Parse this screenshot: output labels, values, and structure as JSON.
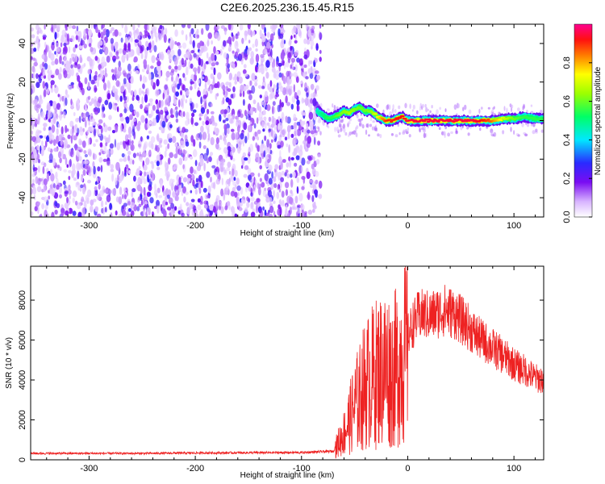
{
  "title": "C2E6.2025.236.15.45.R15",
  "colors": {
    "snr_line": "#ee2222",
    "axis": "#000000",
    "speckle": "#7a0cf2"
  },
  "chart_data": [
    {
      "type": "heatmap",
      "name": "spectrogram",
      "xlabel": "Height of straight line (km)",
      "ylabel": "Frequency (Hz)",
      "xlim": [
        -355,
        128
      ],
      "ylim": [
        -50,
        50
      ],
      "xticks": [
        -300,
        -200,
        -100,
        0,
        100
      ],
      "xtick_labels": [
        "-300",
        "-200",
        "-100",
        "0",
        "100"
      ],
      "yticks": [
        -40,
        -20,
        0,
        20,
        40
      ],
      "ytick_labels": [
        "-40",
        "-20",
        "0",
        "20",
        "40"
      ],
      "noise_region_x": [
        -355,
        -82
      ],
      "signal_ridge": {
        "x": [
          -85,
          -80,
          -75,
          -70,
          -65,
          -60,
          -55,
          -50,
          -45,
          -40,
          -35,
          -30,
          -25,
          -20,
          -15,
          -10,
          -5,
          0,
          10,
          20,
          30,
          40,
          50,
          60,
          70,
          80,
          90,
          100,
          110,
          120,
          128
        ],
        "freq": [
          5,
          3,
          1,
          2,
          3,
          5,
          4,
          6,
          7,
          5,
          5,
          3,
          1,
          0,
          0,
          1,
          2,
          0,
          0,
          0,
          0,
          0,
          0,
          0,
          0,
          0,
          1,
          1,
          2,
          1,
          1
        ],
        "amplitude": [
          0.45,
          0.5,
          0.55,
          0.55,
          0.6,
          0.62,
          0.65,
          0.62,
          0.6,
          0.6,
          0.62,
          0.7,
          0.8,
          0.9,
          0.9,
          0.92,
          0.92,
          0.95,
          0.95,
          0.95,
          0.95,
          0.95,
          0.95,
          0.95,
          0.92,
          0.85,
          0.7,
          0.6,
          0.55,
          0.55,
          0.55
        ]
      },
      "colorbar": {
        "label": "Normalized spectral amplitude",
        "range": [
          0,
          1
        ],
        "ticks": [
          0.0,
          0.2,
          0.4,
          0.6,
          0.8
        ],
        "tick_labels": [
          "0.0",
          "0.2",
          "0.4",
          "0.6",
          "0.8"
        ]
      }
    },
    {
      "type": "line",
      "name": "snr",
      "xlabel": "Height of straight line (km)",
      "ylabel": "SNR (10 * v/v)",
      "xlim": [
        -355,
        128
      ],
      "ylim": [
        0,
        9700
      ],
      "xticks": [
        -300,
        -200,
        -100,
        0,
        100
      ],
      "xtick_labels": [
        "-300",
        "-200",
        "-100",
        "0",
        "100"
      ],
      "yticks": [
        0,
        2000,
        4000,
        6000,
        8000
      ],
      "ytick_labels": [
        "0",
        "2000",
        "4000",
        "6000",
        "8000"
      ],
      "series": [
        {
          "name": "SNR",
          "x": [
            -355,
            -300,
            -250,
            -200,
            -150,
            -100,
            -70,
            -65,
            -60,
            -55,
            -50,
            -45,
            -40,
            -35,
            -30,
            -25,
            -20,
            -15,
            -10,
            -5,
            0,
            5,
            10,
            15,
            20,
            25,
            30,
            35,
            40,
            45,
            50,
            55,
            60,
            65,
            70,
            75,
            80,
            85,
            90,
            95,
            100,
            105,
            110,
            115,
            120,
            128
          ],
          "y": [
            300,
            300,
            300,
            320,
            330,
            340,
            400,
            1000,
            1500,
            2200,
            3000,
            3500,
            4200,
            4500,
            4800,
            5000,
            5200,
            4800,
            5200,
            5800,
            6200,
            6800,
            7200,
            7300,
            7200,
            7300,
            7400,
            7500,
            7400,
            7300,
            7000,
            6800,
            6500,
            6200,
            6000,
            5800,
            5600,
            5400,
            5200,
            5000,
            4800,
            4600,
            4500,
            4300,
            4100,
            4000
          ]
        }
      ]
    }
  ]
}
